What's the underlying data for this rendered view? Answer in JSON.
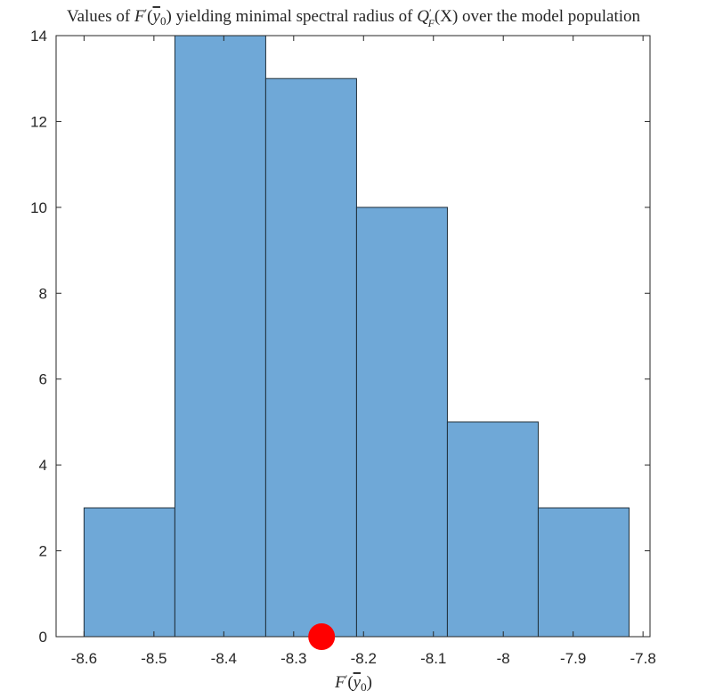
{
  "chart_data": {
    "type": "bar",
    "title": {
      "lead": "Values of ",
      "fprime": "F",
      "prime": "′",
      "paren_open": "(",
      "ybar": "y",
      "sub0": "0",
      "paren_close": ")",
      "mid": " yielding minimal spectral radius of ",
      "Q": "Q",
      "Qsub": "F",
      "arg": "(X)",
      "tail": " over the model population"
    },
    "xlabel": {
      "fprime": "F",
      "prime": "′",
      "paren_open": "(",
      "ybar": "y",
      "sub0": "0",
      "paren_close": ")"
    },
    "ylabel": "",
    "bins": [
      {
        "x0": -8.6,
        "x1": -8.47,
        "count": 3
      },
      {
        "x0": -8.47,
        "x1": -8.34,
        "count": 14
      },
      {
        "x0": -8.34,
        "x1": -8.21,
        "count": 13
      },
      {
        "x0": -8.21,
        "x1": -8.08,
        "count": 10
      },
      {
        "x0": -8.08,
        "x1": -7.95,
        "count": 5
      },
      {
        "x0": -7.95,
        "x1": -7.82,
        "count": 3
      }
    ],
    "marker": {
      "x": -8.26,
      "y": 0,
      "color": "#ff0000"
    },
    "xlim": [
      -8.64,
      -7.79
    ],
    "ylim": [
      0,
      14
    ],
    "xticks": [
      -8.6,
      -8.5,
      -8.4,
      -8.3,
      -8.2,
      -8.1,
      -8,
      -7.9,
      -7.8
    ],
    "xtick_labels": [
      "-8.6",
      "-8.5",
      "-8.4",
      "-8.3",
      "-8.2",
      "-8.1",
      "-8",
      "-7.9",
      "-7.8"
    ],
    "yticks": [
      0,
      2,
      4,
      6,
      8,
      10,
      12,
      14
    ],
    "ytick_labels": [
      "0",
      "2",
      "4",
      "6",
      "8",
      "10",
      "12",
      "14"
    ],
    "bar_color": "#6fa8d7",
    "bar_edge": "#1f2f3a",
    "grid": false,
    "box": true
  }
}
